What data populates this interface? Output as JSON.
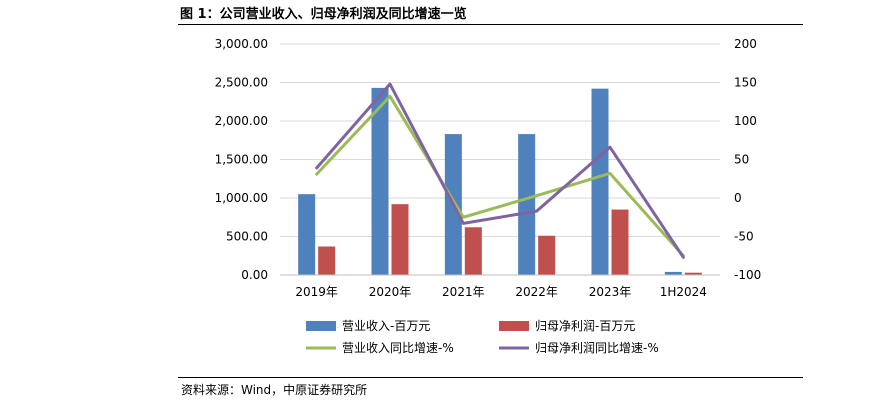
{
  "title": "图 1：公司营业收入、归母净利润及同比增速一览",
  "source": "资料来源：Wind，中原证券研究所",
  "chart_data": {
    "type": "bar+line",
    "categories": [
      "2019年",
      "2020年",
      "2021年",
      "2022年",
      "2023年",
      "1H2024"
    ],
    "left_axis": {
      "ylim": [
        0,
        3000
      ],
      "ticks": [
        "0.00",
        "500.00",
        "1,000.00",
        "1,500.00",
        "2,000.00",
        "2,500.00",
        "3,000.00"
      ]
    },
    "right_axis": {
      "ylim": [
        -100,
        200
      ],
      "ticks": [
        "-100",
        "-50",
        "0",
        "50",
        "100",
        "150",
        "200"
      ]
    },
    "grid": true,
    "legend_position": "bottom",
    "bar_series": [
      {
        "name": "营业收入-百万元",
        "axis": "left",
        "color": "#4f81bd",
        "values": [
          1050,
          2430,
          1830,
          1830,
          2420,
          40
        ]
      },
      {
        "name": "归母净利润-百万元",
        "axis": "left",
        "color": "#c0504d",
        "values": [
          370,
          920,
          620,
          510,
          850,
          30
        ]
      }
    ],
    "line_series": [
      {
        "name": "营业收入同比增速-%",
        "axis": "right",
        "color": "#9bbb59",
        "values": [
          31,
          132,
          -25,
          3,
          32,
          -75
        ]
      },
      {
        "name": "归母净利润同比增速-%",
        "axis": "right",
        "color": "#8064a2",
        "values": [
          39,
          148,
          -33,
          -17,
          66,
          -77
        ]
      }
    ]
  }
}
